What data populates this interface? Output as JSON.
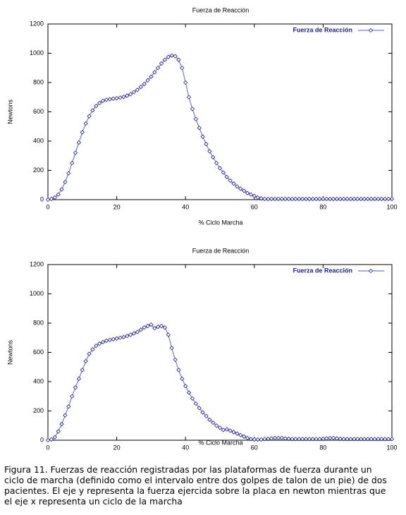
{
  "chart_data": [
    {
      "type": "line",
      "title": "Fuerza de Reacción",
      "xlabel": "% Ciclo Marcha",
      "ylabel": "Newtons",
      "x": [
        0,
        1,
        2,
        3,
        4,
        5,
        6,
        7,
        8,
        9,
        10,
        11,
        12,
        13,
        14,
        15,
        16,
        17,
        18,
        19,
        20,
        21,
        22,
        23,
        24,
        25,
        26,
        27,
        28,
        29,
        30,
        31,
        32,
        33,
        34,
        35,
        36,
        37,
        38,
        39,
        40,
        41,
        42,
        43,
        44,
        45,
        46,
        47,
        48,
        49,
        50,
        51,
        52,
        53,
        54,
        55,
        56,
        57,
        58,
        59,
        60,
        61,
        62,
        63,
        64,
        65,
        66,
        67,
        68,
        69,
        70,
        71,
        72,
        73,
        74,
        75,
        76,
        77,
        78,
        79,
        80,
        81,
        82,
        83,
        84,
        85,
        86,
        87,
        88,
        89,
        90,
        91,
        92,
        93,
        94,
        95,
        96,
        97,
        98,
        99,
        100
      ],
      "series": [
        {
          "name": "Fuerza de Reacción",
          "color": "#1c1c8c",
          "values": [
            0,
            5,
            15,
            35,
            70,
            120,
            180,
            250,
            320,
            390,
            460,
            520,
            570,
            610,
            640,
            660,
            675,
            682,
            686,
            690,
            693,
            697,
            702,
            710,
            720,
            735,
            750,
            770,
            790,
            815,
            840,
            870,
            900,
            930,
            955,
            975,
            985,
            980,
            955,
            900,
            800,
            700,
            620,
            550,
            490,
            430,
            380,
            330,
            290,
            250,
            215,
            185,
            155,
            130,
            110,
            90,
            75,
            60,
            45,
            35,
            25,
            15,
            8,
            5,
            5,
            5,
            5,
            5,
            5,
            5,
            5,
            5,
            5,
            5,
            5,
            5,
            5,
            5,
            5,
            5,
            5,
            5,
            5,
            5,
            5,
            5,
            5,
            5,
            5,
            5,
            5,
            5,
            5,
            5,
            5,
            5,
            5,
            5,
            5,
            5,
            5
          ]
        }
      ],
      "xlim": [
        0,
        100
      ],
      "ylim": [
        0,
        1200
      ],
      "xticks": [
        0,
        20,
        40,
        60,
        80,
        100
      ],
      "yticks": [
        0,
        200,
        400,
        600,
        800,
        1000,
        1200
      ],
      "legend": "upper right"
    },
    {
      "type": "line",
      "title": "Fuerza de Reacción",
      "xlabel": "% Ciclo Marcha",
      "ylabel": "Newtons",
      "x": [
        0,
        1,
        2,
        3,
        4,
        5,
        6,
        7,
        8,
        9,
        10,
        11,
        12,
        13,
        14,
        15,
        16,
        17,
        18,
        19,
        20,
        21,
        22,
        23,
        24,
        25,
        26,
        27,
        28,
        29,
        30,
        31,
        32,
        33,
        34,
        35,
        36,
        37,
        38,
        39,
        40,
        41,
        42,
        43,
        44,
        45,
        46,
        47,
        48,
        49,
        50,
        51,
        52,
        53,
        54,
        55,
        56,
        57,
        58,
        59,
        60,
        61,
        62,
        63,
        64,
        65,
        66,
        67,
        68,
        69,
        70,
        71,
        72,
        73,
        74,
        75,
        76,
        77,
        78,
        79,
        80,
        81,
        82,
        83,
        84,
        85,
        86,
        87,
        88,
        89,
        90,
        91,
        92,
        93,
        94,
        95,
        96,
        97,
        98,
        99,
        100
      ],
      "series": [
        {
          "name": "Fuerza de Reacción",
          "color": "#1c1c8c",
          "values": [
            0,
            5,
            20,
            60,
            110,
            170,
            230,
            300,
            360,
            420,
            480,
            540,
            590,
            620,
            645,
            660,
            670,
            680,
            685,
            690,
            695,
            700,
            705,
            712,
            720,
            730,
            740,
            755,
            770,
            780,
            790,
            765,
            775,
            780,
            770,
            720,
            630,
            550,
            480,
            420,
            370,
            325,
            285,
            250,
            220,
            190,
            165,
            140,
            120,
            100,
            85,
            70,
            75,
            65,
            55,
            45,
            35,
            25,
            15,
            8,
            5,
            5,
            5,
            8,
            10,
            12,
            15,
            15,
            15,
            12,
            10,
            8,
            8,
            8,
            8,
            8,
            8,
            8,
            8,
            8,
            10,
            12,
            15,
            15,
            12,
            10,
            8,
            8,
            8,
            8,
            8,
            8,
            8,
            8,
            8,
            8,
            8,
            8,
            8,
            8,
            8
          ]
        }
      ],
      "xlim": [
        0,
        100
      ],
      "ylim": [
        0,
        1200
      ],
      "xticks": [
        0,
        20,
        40,
        60,
        80,
        100
      ],
      "yticks": [
        0,
        200,
        400,
        600,
        800,
        1000,
        1200
      ],
      "legend": "upper right"
    }
  ],
  "caption": [
    "Figura 11.  Fuerzas de reacción registradas por las plataformas de fuerza durante un",
    "ciclo de marcha (definido como el intervalo entre dos golpes de talon de un pie) de dos",
    "pacientes. El eje y representa la fuerza ejercida sobre la placa en newton mientras que",
    "el eje x representa un ciclo de la marcha"
  ]
}
